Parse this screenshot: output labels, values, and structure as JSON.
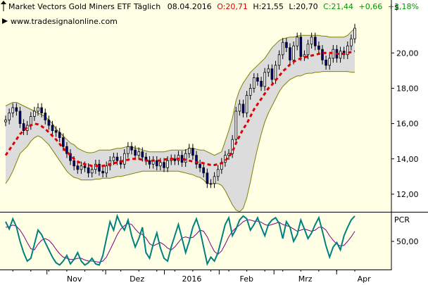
{
  "header": {
    "title": "Market Vectors Gold Miners ETF Täglich",
    "date": "08.04.2016",
    "open": "O:20,71",
    "high": "H:21,55",
    "low": "L:20,70",
    "close": "C:21,44",
    "change": "+0,66",
    "change_pct": "+3,18%",
    "source": "www.tradesignalonline.com"
  },
  "colors": {
    "background": "#ffffe6",
    "band_fill": "#dcdcdc",
    "band_line": "#808000",
    "sma": "#dd0000",
    "candle_up": "#ffffff",
    "candle_down": "#000080",
    "pcr_line": "#008080",
    "pcr_signal": "#800080",
    "open_red": "#dd0000",
    "change_green": "#009900"
  },
  "chart_data": [
    {
      "type": "candlestick",
      "unit_label": "$",
      "y_ticks": [
        "12,00",
        "14,00",
        "16,00",
        "18,00",
        "20,00"
      ],
      "ylim": [
        11,
        23
      ],
      "x_ticks": [
        "Nov",
        "Dez",
        "2016",
        "Feb",
        "Mrz",
        "Apr"
      ],
      "overlays": [
        "bollinger bands",
        "moving average"
      ],
      "close": [
        16.2,
        16.6,
        16.9,
        16.7,
        16.0,
        15.6,
        15.9,
        16.4,
        16.7,
        16.9,
        16.6,
        16.2,
        15.9,
        15.6,
        15.5,
        15.2,
        14.7,
        14.3,
        13.9,
        13.6,
        13.4,
        13.6,
        13.5,
        13.2,
        13.4,
        13.7,
        13.3,
        13.2,
        13.6,
        13.9,
        14.1,
        13.9,
        13.7,
        14.3,
        14.7,
        14.5,
        14.2,
        14.4,
        14.1,
        13.9,
        13.7,
        13.9,
        13.6,
        13.8,
        13.5,
        13.9,
        14.0,
        13.9,
        14.2,
        13.8,
        14.3,
        14.6,
        14.2,
        13.7,
        13.5,
        13.2,
        12.6,
        12.6,
        13.0,
        13.4,
        13.8,
        14.2,
        14.3,
        15.1,
        16.7,
        17.1,
        16.6,
        17.6,
        18.0,
        18.6,
        18.4,
        18.1,
        18.9,
        19.1,
        18.5,
        19.3,
        19.9,
        20.6,
        20.3,
        19.6,
        20.4,
        20.9,
        19.8,
        19.9,
        20.5,
        20.9,
        20.4,
        20.2,
        19.6,
        19.3,
        19.7,
        20.2,
        19.7,
        20.1,
        19.9,
        20.4,
        20.8,
        21.4
      ],
      "sma": [
        14.2,
        14.5,
        14.8,
        15.1,
        15.4,
        15.6,
        15.8,
        15.9,
        16.0,
        15.95,
        15.85,
        15.7,
        15.5,
        15.3,
        15.1,
        14.85,
        14.6,
        14.4,
        14.2,
        14.0,
        13.85,
        13.75,
        13.7,
        13.65,
        13.6,
        13.6,
        13.6,
        13.6,
        13.65,
        13.7,
        13.75,
        13.8,
        13.85,
        13.9,
        13.95,
        14.0,
        14.0,
        14.0,
        13.95,
        13.9,
        13.9,
        13.9,
        13.9,
        13.9,
        13.95,
        14.0,
        14.0,
        14.0,
        14.0,
        14.0,
        13.95,
        13.9,
        13.85,
        13.8,
        13.8,
        13.75,
        13.7,
        13.65,
        13.65,
        13.7,
        13.75,
        13.9,
        14.1,
        14.4,
        14.9,
        15.3,
        15.7,
        16.0,
        16.4,
        16.8,
        17.1,
        17.4,
        17.7,
        18.0,
        18.2,
        18.45,
        18.7,
        18.95,
        19.15,
        19.35,
        19.5,
        19.6,
        19.7,
        19.75,
        19.8,
        19.85,
        19.9,
        19.95,
        20.0,
        20.0,
        20.0,
        20.0,
        19.95,
        19.95,
        19.95,
        20.0,
        20.05,
        20.1
      ],
      "band_upper": [
        17.0,
        17.1,
        17.2,
        17.2,
        17.1,
        17.0,
        16.9,
        16.8,
        16.7,
        16.6,
        16.5,
        16.4,
        16.2,
        16.0,
        15.7,
        15.5,
        15.3,
        15.1,
        14.9,
        14.8,
        14.6,
        14.5,
        14.4,
        14.35,
        14.35,
        14.4,
        14.5,
        14.5,
        14.5,
        14.5,
        14.55,
        14.6,
        14.6,
        14.65,
        14.7,
        14.7,
        14.6,
        14.6,
        14.5,
        14.45,
        14.4,
        14.4,
        14.4,
        14.4,
        14.4,
        14.45,
        14.5,
        14.5,
        14.5,
        14.5,
        14.5,
        14.6,
        14.6,
        14.55,
        14.5,
        14.5,
        14.4,
        14.3,
        14.2,
        14.3,
        14.4,
        15.0,
        15.6,
        16.3,
        17.3,
        17.9,
        18.3,
        18.6,
        18.9,
        19.1,
        19.3,
        19.5,
        19.7,
        20.0,
        20.3,
        20.5,
        20.7,
        20.8,
        20.85,
        20.9,
        20.9,
        20.95,
        21.0,
        21.0,
        21.0,
        21.0,
        21.0,
        21.0,
        20.95,
        20.95,
        20.9,
        20.9,
        20.9,
        20.9,
        20.9,
        21.0,
        21.2,
        21.4
      ],
      "band_lower": [
        12.6,
        12.9,
        13.3,
        13.8,
        14.3,
        14.5,
        14.7,
        15.0,
        15.2,
        15.3,
        15.2,
        15.0,
        14.8,
        14.5,
        14.2,
        13.9,
        13.6,
        13.3,
        13.1,
        12.95,
        12.9,
        12.8,
        12.8,
        12.8,
        12.8,
        12.85,
        12.85,
        12.9,
        12.9,
        12.9,
        12.95,
        13.0,
        13.0,
        13.05,
        13.1,
        13.15,
        13.2,
        13.25,
        13.3,
        13.3,
        13.3,
        13.3,
        13.3,
        13.3,
        13.3,
        13.3,
        13.3,
        13.3,
        13.3,
        13.25,
        13.2,
        13.15,
        13.1,
        13.0,
        12.95,
        12.8,
        12.6,
        12.6,
        12.6,
        12.6,
        12.5,
        12.2,
        11.8,
        11.4,
        11.1,
        11.0,
        11.2,
        11.8,
        12.7,
        13.7,
        14.6,
        15.4,
        16.1,
        16.6,
        17.0,
        17.4,
        17.8,
        18.1,
        18.3,
        18.5,
        18.6,
        18.7,
        18.7,
        18.8,
        18.85,
        18.85,
        18.9,
        18.9,
        18.95,
        18.95,
        18.95,
        18.95,
        18.95,
        18.95,
        18.95,
        18.95,
        18.9,
        18.9
      ]
    },
    {
      "type": "line",
      "unit_label": "PCR",
      "y_ticks": [
        "50,00"
      ],
      "ylim": [
        0,
        100
      ],
      "series": [
        {
          "values": [
            85,
            72,
            90,
            76,
            50,
            30,
            15,
            20,
            45,
            70,
            62,
            48,
            35,
            22,
            12,
            8,
            15,
            25,
            10,
            18,
            30,
            15,
            8,
            12,
            20,
            10,
            8,
            25,
            55,
            85,
            70,
            95,
            80,
            70,
            88,
            60,
            40,
            55,
            75,
            30,
            20,
            45,
            65,
            38,
            20,
            15,
            40,
            60,
            80,
            55,
            30,
            50,
            75,
            90,
            70,
            40,
            10,
            22,
            15,
            30,
            55,
            80,
            92,
            60,
            72,
            88,
            95,
            90,
            70,
            80,
            92,
            75,
            60,
            80,
            88,
            92,
            82,
            55,
            85,
            75,
            50,
            62,
            88,
            72,
            55,
            65,
            80,
            92,
            68,
            42,
            22,
            40,
            48,
            35,
            60,
            75,
            88,
            95
          ]
        },
        {
          "values": [
            75,
            76,
            79,
            77,
            70,
            60,
            48,
            37,
            35,
            45,
            52,
            55,
            52,
            45,
            36,
            28,
            22,
            20,
            18,
            18,
            20,
            20,
            17,
            15,
            15,
            14,
            13,
            15,
            22,
            35,
            48,
            62,
            72,
            78,
            82,
            80,
            72,
            65,
            62,
            56,
            46,
            42,
            45,
            48,
            44,
            38,
            35,
            40,
            48,
            56,
            58,
            56,
            57,
            63,
            70,
            68,
            58,
            44,
            32,
            27,
            33,
            45,
            58,
            68,
            74,
            79,
            85,
            88,
            88,
            86,
            86,
            84,
            80,
            78,
            80,
            82,
            84,
            80,
            78,
            76,
            72,
            68,
            70,
            72,
            70,
            68,
            70,
            75,
            75,
            70,
            60,
            52,
            45,
            42,
            43,
            50,
            58,
            68
          ]
        }
      ]
    }
  ]
}
